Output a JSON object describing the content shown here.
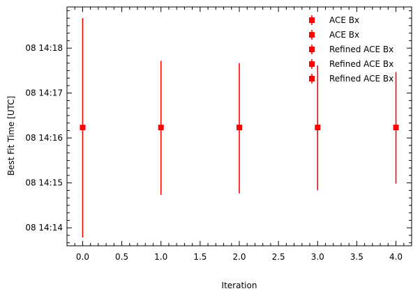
{
  "chart_data": {
    "type": "scatter",
    "xlabel": "Iteration",
    "ylabel": "Best Fit Time [UTC]",
    "xlim": [
      -0.2,
      4.2
    ],
    "ylim": [
      "08 14:13:36",
      "08 14:18:55"
    ],
    "x_ticks": [
      "0.0",
      "0.5",
      "1.0",
      "1.5",
      "2.0",
      "2.5",
      "3.0",
      "3.5",
      "4.0"
    ],
    "y_ticks": [
      "08 14:14",
      "08 14:15",
      "08 14:16",
      "08 14:17",
      "08 14:18"
    ],
    "grid": false,
    "legend_position": "top-right",
    "marker_color": "#ff0000",
    "series": [
      {
        "name": "ACE Bx",
        "x": 0,
        "y": "08 14:16:14",
        "y_low": "08 14:13:47",
        "y_high": "08 14:18:40"
      },
      {
        "name": "ACE Bx",
        "x": 1,
        "y": "08 14:16:14",
        "y_low": "08 14:14:44",
        "y_high": "08 14:17:43"
      },
      {
        "name": "Refined ACE Bx",
        "x": 2,
        "y": "08 14:16:14",
        "y_low": "08 14:14:46",
        "y_high": "08 14:17:40"
      },
      {
        "name": "Refined ACE Bx",
        "x": 3,
        "y": "08 14:16:14",
        "y_low": "08 14:14:50",
        "y_high": "08 14:17:37"
      },
      {
        "name": "Refined ACE Bx",
        "x": 4,
        "y": "08 14:16:14",
        "y_low": "08 14:14:59",
        "y_high": "08 14:17:28"
      }
    ]
  }
}
